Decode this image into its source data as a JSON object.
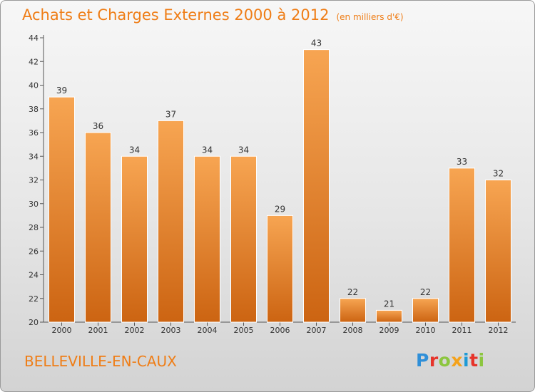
{
  "header": {
    "title": "Achats et Charges Externes 2000 à 2012",
    "subtitle": "(en milliers d'€)"
  },
  "footer": {
    "commune": "BELLEVILLE-EN-CAUX",
    "logo_letters": [
      {
        "ch": "P",
        "color": "#2f8fd8"
      },
      {
        "ch": "r",
        "color": "#e6342a"
      },
      {
        "ch": "o",
        "color": "#8cc63f"
      },
      {
        "ch": "x",
        "color": "#f4a21b"
      },
      {
        "ch": "i",
        "color": "#1d9ad6"
      },
      {
        "ch": "t",
        "color": "#e6342a"
      },
      {
        "ch": "i",
        "color": "#8cc63f"
      }
    ]
  },
  "colors": {
    "bar_light": "#f7a552",
    "bar_dark": "#cc6412",
    "bar_edge": "#ffffff",
    "accent": "#ef7d16"
  },
  "chart_data": {
    "type": "bar",
    "title": "Achats et Charges Externes 2000 à 2012",
    "subtitle": "(en milliers d'€)",
    "categories": [
      "2000",
      "2001",
      "2002",
      "2003",
      "2004",
      "2005",
      "2006",
      "2007",
      "2008",
      "2009",
      "2010",
      "2011",
      "2012"
    ],
    "values": [
      39,
      36,
      34,
      37,
      34,
      34,
      29,
      43,
      22,
      21,
      22,
      33,
      32
    ],
    "ylim": [
      20,
      44
    ],
    "yticks": [
      20,
      22,
      24,
      26,
      28,
      30,
      32,
      34,
      36,
      38,
      40,
      42,
      44
    ],
    "grid": false
  }
}
